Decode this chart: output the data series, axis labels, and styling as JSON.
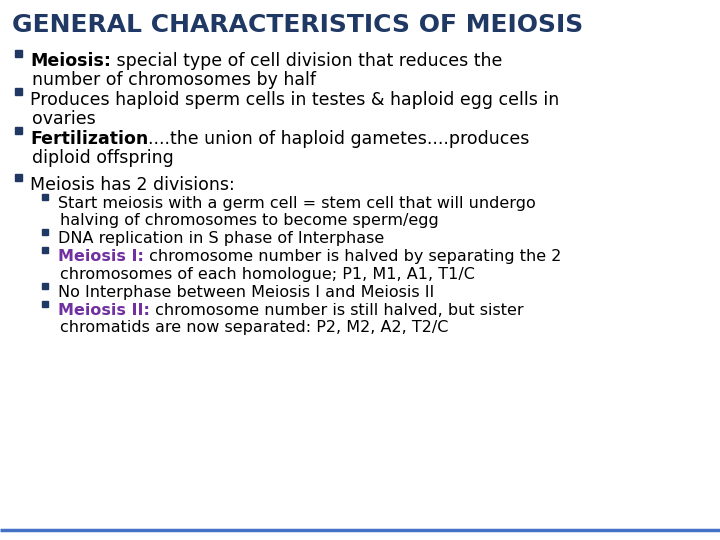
{
  "title": "GENERAL CHARACTERISTICS OF MEIOSIS",
  "title_color": "#1F3864",
  "title_fontsize": 18,
  "background_color": "#FFFFFF",
  "bullet_color": "#1F3864",
  "text_color": "#000000",
  "purple_color": "#7030A0",
  "bottom_line_color": "#4472C4",
  "content": [
    {
      "type": "bullet_top",
      "parts": [
        {
          "text": "Meiosis:",
          "bold": true,
          "color": "#000000"
        },
        {
          "text": " special type of cell division that reduces the\nnumber of chromosomes by half",
          "bold": false,
          "color": "#000000"
        }
      ]
    },
    {
      "type": "bullet_top",
      "parts": [
        {
          "text": "Produces haploid sperm cells in testes & haploid egg cells in\novaries",
          "bold": false,
          "color": "#000000"
        }
      ]
    },
    {
      "type": "bullet_top",
      "parts": [
        {
          "text": "Fertilization",
          "bold": true,
          "color": "#000000"
        },
        {
          "text": "....the union of haploid gametes....produces\ndiploid offspring",
          "bold": false,
          "color": "#000000"
        }
      ]
    },
    {
      "type": "spacer"
    },
    {
      "type": "bullet_top",
      "parts": [
        {
          "text": "Meiosis has 2 divisions:",
          "bold": false,
          "color": "#000000"
        }
      ]
    },
    {
      "type": "bullet_sub",
      "parts": [
        {
          "text": "Start meiosis with a germ cell = stem cell that will undergo\nhalving of chromosomes to become sperm/egg",
          "bold": false,
          "color": "#000000"
        }
      ]
    },
    {
      "type": "bullet_sub",
      "parts": [
        {
          "text": "DNA replication in S phase of Interphase",
          "bold": false,
          "color": "#000000"
        }
      ]
    },
    {
      "type": "bullet_sub",
      "parts": [
        {
          "text": "Meiosis I:",
          "bold": true,
          "color": "#7030A0"
        },
        {
          "text": " chromosome number is halved by separating the 2\nchromosomes of each homologue; P1, M1, A1, T1/C",
          "bold": false,
          "color": "#000000"
        }
      ]
    },
    {
      "type": "bullet_sub",
      "parts": [
        {
          "text": "No Interphase between Meiosis I and Meiosis II",
          "bold": false,
          "color": "#000000"
        }
      ]
    },
    {
      "type": "bullet_sub",
      "parts": [
        {
          "text": "Meiosis II:",
          "bold": true,
          "color": "#7030A0"
        },
        {
          "text": " chromosome number is still halved, but sister\nchromatids are now separated: P2, M2, A2, T2/C",
          "bold": false,
          "color": "#000000"
        }
      ]
    }
  ]
}
